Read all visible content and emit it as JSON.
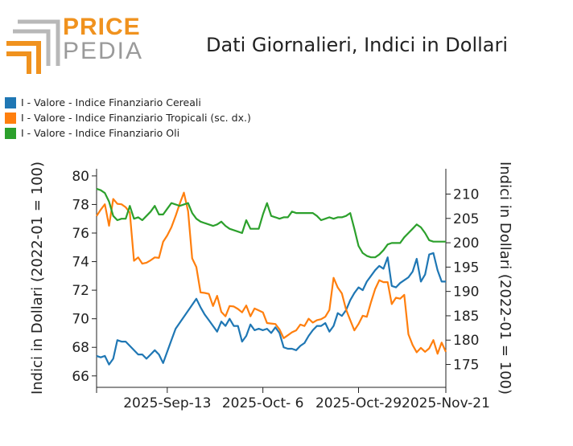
{
  "logo": {
    "word1": "PRICE",
    "word2": "PEDIA"
  },
  "chart_data": {
    "type": "line",
    "title": "Dati Giornalieri, Indici in Dollari",
    "ylabel": "Indici in Dollari (2022-01 = 100)",
    "y2label": "Indici in Dollari (2022-01 = 100)",
    "ylim": [
      65.2,
      80.5
    ],
    "y2lim": [
      170.3,
      215.2
    ],
    "yticks": [
      "66",
      "68",
      "70",
      "72",
      "74",
      "76",
      "78",
      "80"
    ],
    "y2ticks": [
      "175",
      "180",
      "185",
      "190",
      "195",
      "200",
      "205",
      "210"
    ],
    "xlim": [
      0,
      80
    ],
    "xticks": [
      {
        "x": 0,
        "label": ""
      },
      {
        "x": 17,
        "label": "2025-Sep-13"
      },
      {
        "x": 40,
        "label": "2025-Oct- 6"
      },
      {
        "x": 63,
        "label": "2025-Oct-29"
      },
      {
        "x": 86,
        "label": "2025-Nov-21"
      }
    ],
    "legend_placement": "top-left",
    "grid": false,
    "series": [
      {
        "name": "I - Valore - Indice Finanziario Cereali",
        "color": "#1f77b4",
        "axis": "left",
        "x": [
          0,
          1,
          2,
          3,
          4,
          5,
          6,
          7,
          10,
          11,
          12,
          13,
          14,
          15,
          16,
          17,
          18,
          19,
          24,
          25,
          26,
          27,
          28,
          29,
          30,
          31,
          32,
          33,
          34,
          35,
          36,
          37,
          38,
          39,
          40,
          41,
          42,
          43,
          44,
          45,
          46,
          47,
          48,
          49,
          50,
          51,
          52,
          53,
          54,
          55,
          56,
          57,
          58,
          59,
          60,
          61,
          62,
          63,
          64,
          65,
          66,
          67,
          68,
          69,
          70,
          71,
          72,
          73,
          74,
          75,
          76,
          77,
          78,
          79,
          80
        ],
        "values": [
          67.4,
          67.3,
          67.4,
          66.8,
          67.2,
          68.5,
          68.4,
          68.4,
          67.5,
          67.5,
          67.2,
          67.5,
          67.8,
          67.5,
          66.9,
          67.7,
          68.5,
          69.3,
          71.4,
          70.8,
          70.3,
          69.9,
          69.5,
          69.1,
          69.8,
          69.5,
          70.0,
          69.5,
          69.5,
          68.4,
          68.8,
          69.6,
          69.2,
          69.3,
          69.2,
          69.3,
          69.0,
          69.4,
          69.0,
          68.0,
          67.9,
          67.9,
          67.8,
          68.1,
          68.3,
          68.8,
          69.2,
          69.5,
          69.5,
          69.7,
          69.1,
          69.5,
          70.4,
          70.2,
          70.6,
          71.3,
          71.8,
          72.2,
          72.0,
          72.6,
          73.0,
          73.4,
          73.7,
          73.5,
          74.3,
          72.3,
          72.2,
          72.5,
          72.7,
          72.9,
          73.3,
          74.2,
          72.6,
          73.1,
          74.5
        ],
        "extra_points": [
          [
            81,
            74.6
          ],
          [
            82,
            73.4
          ],
          [
            83,
            72.6
          ],
          [
            84,
            72.6
          ]
        ]
      },
      {
        "name": "I - Valore - Indice Finanziario Tropicali (sc. dx.)",
        "color": "#ff7f0e",
        "axis": "right",
        "x": [
          0,
          1,
          2,
          3,
          4,
          5,
          6,
          7,
          8,
          9,
          10,
          11,
          12,
          13,
          14,
          15,
          16,
          17,
          18,
          19,
          20,
          21,
          22,
          23,
          24,
          25,
          26,
          27,
          28,
          29,
          30,
          31,
          32,
          33,
          34,
          35,
          36,
          37,
          38,
          39,
          40,
          41,
          42,
          43,
          44,
          45,
          46,
          47,
          48,
          49,
          50,
          51,
          52,
          53,
          54,
          55,
          56,
          57,
          58,
          59,
          60,
          61,
          62,
          63,
          64,
          65,
          66,
          67,
          68,
          69,
          70,
          71,
          72,
          73,
          74,
          75,
          76,
          77,
          78,
          79,
          80,
          81,
          82,
          83,
          84
        ],
        "values": [
          205.5,
          206.8,
          207.9,
          203.5,
          209.0,
          208.0,
          207.9,
          207.3,
          206.2,
          196.3,
          197.0,
          195.7,
          195.9,
          196.4,
          197.0,
          196.9,
          200.2,
          201.5,
          203.2,
          205.5,
          208.0,
          210.3,
          206.5,
          196.8,
          195.0,
          189.8,
          189.7,
          189.5,
          187.0,
          189.1,
          185.8,
          184.9,
          187.0,
          186.9,
          186.4,
          185.7,
          187.1,
          184.9,
          186.5,
          186.1,
          185.7,
          183.5,
          183.4,
          183.3,
          182.2,
          180.4,
          181.0,
          181.6,
          182.0,
          183.2,
          182.9,
          184.4,
          183.6,
          184.1,
          184.3,
          184.8,
          186.2,
          192.8,
          190.8,
          189.6,
          186.3,
          184.1,
          182.0,
          183.3,
          185.0,
          184.8,
          187.8,
          190.5,
          192.3,
          191.9,
          191.9,
          187.4,
          188.7,
          188.5,
          189.3,
          181.2,
          179.0,
          177.5,
          178.4,
          177.6,
          178.3,
          180.0,
          177.2,
          179.5,
          177.6
        ]
      },
      {
        "name": "I - Valore - Indice Finanziario Oli",
        "color": "#2ca02c",
        "axis": "left",
        "x": [
          0,
          1,
          2,
          3,
          4,
          5,
          6,
          7,
          8,
          9,
          10,
          11,
          12,
          13,
          14,
          15,
          16,
          17,
          18,
          19,
          20,
          21,
          22,
          23,
          24,
          25,
          26,
          27,
          28,
          29,
          30,
          31,
          32,
          33,
          34,
          35,
          36,
          37,
          38,
          39,
          40,
          41,
          42,
          43,
          44,
          45,
          46,
          47,
          48,
          49,
          50,
          51,
          52,
          53,
          54,
          55,
          56,
          57,
          58,
          59,
          60,
          61,
          62,
          63,
          64,
          65,
          66,
          67,
          68,
          69,
          70,
          71,
          72,
          73,
          74,
          75,
          76,
          77,
          78,
          79,
          80,
          81,
          82,
          83,
          84
        ],
        "values": [
          79.1,
          79.0,
          78.8,
          78.2,
          77.2,
          76.9,
          77.0,
          77.0,
          77.9,
          77.0,
          77.1,
          76.9,
          77.2,
          77.5,
          77.9,
          77.3,
          77.3,
          77.7,
          78.1,
          78.0,
          77.9,
          78.0,
          78.1,
          77.4,
          77.0,
          76.8,
          76.7,
          76.6,
          76.5,
          76.6,
          76.8,
          76.5,
          76.3,
          76.2,
          76.1,
          76.0,
          76.9,
          76.3,
          76.3,
          76.3,
          77.3,
          78.1,
          77.2,
          77.1,
          77.0,
          77.1,
          77.1,
          77.5,
          77.4,
          77.4,
          77.4,
          77.4,
          77.4,
          77.2,
          76.9,
          77.0,
          77.1,
          77.0,
          77.1,
          77.1,
          77.2,
          77.4,
          76.3,
          75.1,
          74.6,
          74.4,
          74.3,
          74.3,
          74.5,
          74.8,
          75.2,
          75.3,
          75.3,
          75.3,
          75.7,
          76.0,
          76.3,
          76.6,
          76.4,
          76.0,
          75.5,
          75.4,
          75.4,
          75.4,
          75.4
        ]
      }
    ]
  }
}
